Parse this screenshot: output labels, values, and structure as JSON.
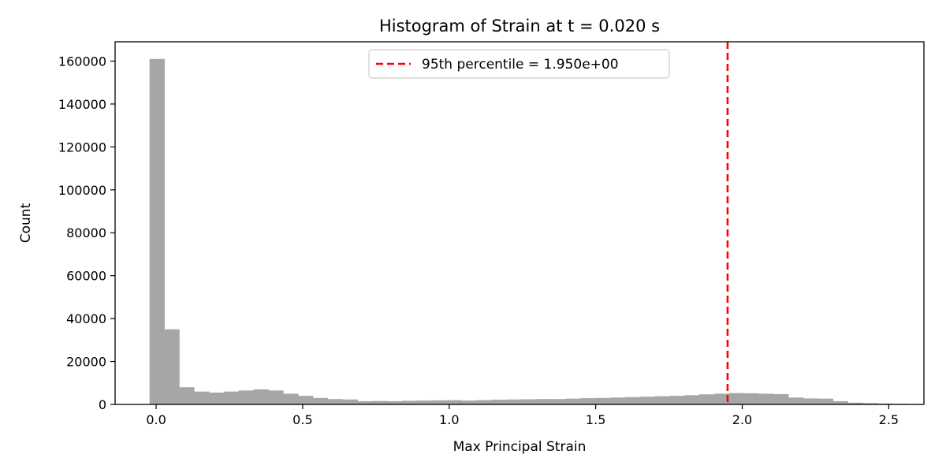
{
  "chart_data": {
    "type": "bar",
    "title": "Histogram of Strain at t = 0.020 s",
    "xlabel": "Max Principal Strain",
    "ylabel": "Count",
    "xlim": [
      -0.14,
      2.62
    ],
    "ylim": [
      0,
      169000
    ],
    "x_ticks": [
      0.0,
      0.5,
      1.0,
      1.5,
      2.0,
      2.5
    ],
    "x_tick_labels": [
      "0.0",
      "0.5",
      "1.0",
      "1.5",
      "2.0",
      "2.5"
    ],
    "y_ticks": [
      0,
      20000,
      40000,
      60000,
      80000,
      100000,
      120000,
      140000,
      160000
    ],
    "y_tick_labels": [
      "0",
      "20000",
      "40000",
      "60000",
      "80000",
      "100000",
      "120000",
      "140000",
      "160000"
    ],
    "bin_start": -0.0225,
    "bin_width": 0.0507,
    "counts": [
      161000,
      35000,
      8000,
      6000,
      5500,
      6000,
      6500,
      7000,
      6500,
      5000,
      4000,
      3000,
      2500,
      2300,
      1500,
      1600,
      1500,
      1700,
      1800,
      1900,
      2000,
      1800,
      2000,
      2200,
      2300,
      2400,
      2500,
      2500,
      2700,
      2900,
      3000,
      3200,
      3400,
      3600,
      3800,
      4000,
      4300,
      4700,
      5000,
      5300,
      5200,
      5000,
      4800,
      3200,
      2800,
      2700,
      1500,
      800,
      600,
      400,
      300,
      200
    ],
    "bar_color": "#a6a6a6",
    "grid": false,
    "reference_line": {
      "x": 1.95,
      "color": "#ff0000",
      "style": "dashed",
      "label": "95th percentile = 1.950e+00"
    },
    "legend": {
      "placement": "upper-center",
      "entries": [
        "95th percentile = 1.950e+00"
      ]
    }
  }
}
